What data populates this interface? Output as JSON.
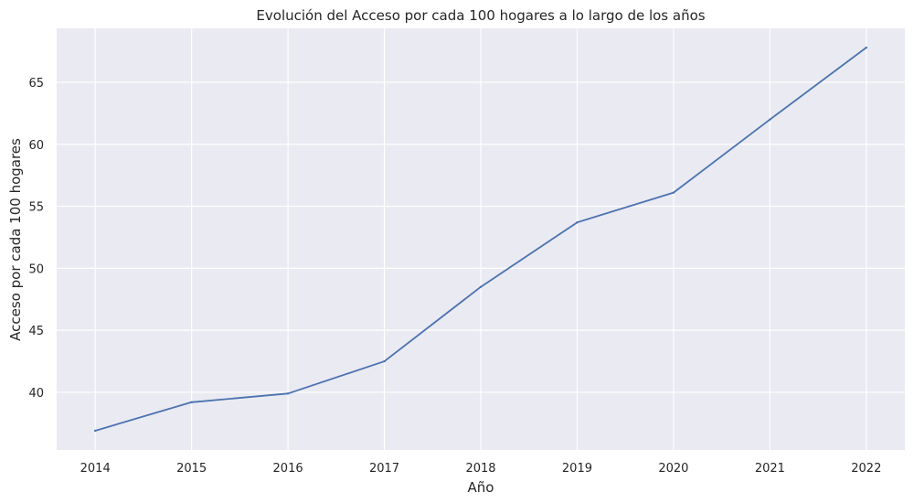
{
  "chart_data": {
    "type": "line",
    "title": "Evolución del Acceso por cada 100 hogares a lo largo de los años",
    "xlabel": "Año",
    "ylabel": "Acceso por cada 100 hogares",
    "x": [
      2014,
      2015,
      2016,
      2017,
      2018,
      2019,
      2020,
      2021,
      2022
    ],
    "series": [
      {
        "name": "",
        "values": [
          36.9,
          39.2,
          39.9,
          42.5,
          48.5,
          53.7,
          56.1,
          62.0,
          67.8
        ],
        "color": "#4c72b0"
      }
    ],
    "x_ticks": [
      "2014",
      "2015",
      "2016",
      "2017",
      "2018",
      "2019",
      "2020",
      "2021",
      "2022"
    ],
    "y_ticks": [
      "40",
      "45",
      "50",
      "55",
      "60",
      "65"
    ],
    "xlim": [
      2013.6,
      2022.4
    ],
    "ylim": [
      35.35,
      69.35
    ],
    "grid": true,
    "background_color": "#eaeaf2",
    "grid_color": "#ffffff"
  }
}
